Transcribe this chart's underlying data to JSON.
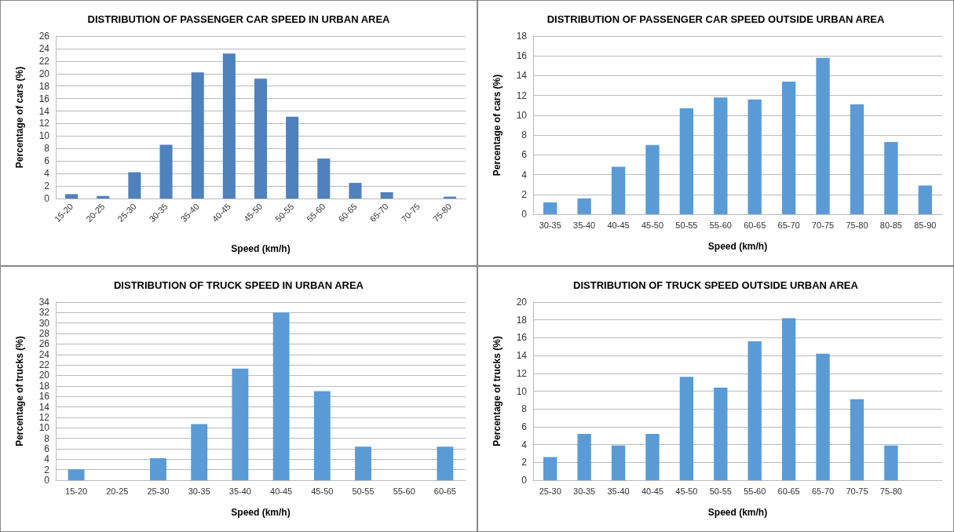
{
  "chart_data": [
    {
      "type": "bar",
      "title": "DISTRIBUTION OF PASSENGER CAR SPEED IN URBAN AREA",
      "xlabel": "Speed (km/h)",
      "ylabel": "Percentage of cars (%)",
      "categories": [
        "15-20",
        "20-25",
        "25-30",
        "30-35",
        "35-40",
        "40-45",
        "45-50",
        "50-55",
        "55-60",
        "60-65",
        "65-70",
        "70-75",
        "75-80"
      ],
      "series": [
        {
          "color": "#4f81bd",
          "values": [
            0.7,
            0.4,
            4.2,
            8.6,
            20.2,
            23.2,
            19.2,
            13.1,
            6.4,
            2.5,
            1.0,
            0,
            0.3
          ]
        }
      ],
      "ylim": [
        0,
        26
      ],
      "yticks": [
        0,
        2,
        4,
        6,
        8,
        10,
        12,
        14,
        16,
        18,
        20,
        22,
        24,
        26
      ],
      "grid": "y"
    },
    {
      "type": "bar",
      "title": "DISTRIBUTION OF PASSENGER CAR SPEED OUTSIDE URBAN AREA",
      "xlabel": "Speed (km/h)",
      "ylabel": "Percentage of cars (%)",
      "categories": [
        "30-35",
        "35-40",
        "40-45",
        "45-50",
        "50-55",
        "55-60",
        "60-65",
        "65-70",
        "70-75",
        "75-80",
        "80-85",
        "85-90"
      ],
      "series": [
        {
          "color": "#5b9bd5",
          "values": [
            1.2,
            1.6,
            4.8,
            7.0,
            10.7,
            11.8,
            11.6,
            13.4,
            15.8,
            11.1,
            7.3,
            2.9
          ]
        }
      ],
      "ylim": [
        0,
        18
      ],
      "yticks": [
        0,
        2,
        4,
        6,
        8,
        10,
        12,
        14,
        16,
        18
      ],
      "grid": "y"
    },
    {
      "type": "bar",
      "title": "DISTRIBUTION OF TRUCK SPEED IN URBAN AREA",
      "xlabel": "Speed (km/h)",
      "ylabel": "Percentage of trucks (%)",
      "categories": [
        "15-20",
        "20-25",
        "25-30",
        "30-35",
        "35-40",
        "40-45",
        "45-50",
        "50-55",
        "55-60",
        "60-65"
      ],
      "series": [
        {
          "color": "#5b9bd5",
          "values": [
            2.1,
            0,
            4.2,
            10.7,
            21.3,
            32,
            17,
            6.4,
            0,
            6.4
          ]
        }
      ],
      "ylim": [
        0,
        34
      ],
      "yticks": [
        0,
        2,
        4,
        6,
        8,
        10,
        12,
        14,
        16,
        18,
        20,
        22,
        24,
        26,
        28,
        30,
        32,
        34
      ],
      "grid": "y"
    },
    {
      "type": "bar",
      "title": "DISTRIBUTION OF TRUCK SPEED OUTSIDE URBAN AREA",
      "xlabel": "Speed (km/h)",
      "ylabel": "Percentage of trucks (%)",
      "categories": [
        "25-30",
        "30-35",
        "35-40",
        "40-45",
        "45-50",
        "50-55",
        "55-60",
        "60-65",
        "65-70",
        "70-75",
        "75-80",
        null
      ],
      "series": [
        {
          "color": "#5b9bd5",
          "values": [
            2.6,
            5.2,
            3.9,
            5.2,
            11.6,
            10.4,
            15.6,
            18.2,
            14.2,
            9.1,
            3.9,
            null
          ]
        }
      ],
      "ylim": [
        0,
        20
      ],
      "yticks": [
        0,
        2,
        4,
        6,
        8,
        10,
        12,
        14,
        16,
        18,
        20
      ],
      "grid": "y"
    }
  ]
}
